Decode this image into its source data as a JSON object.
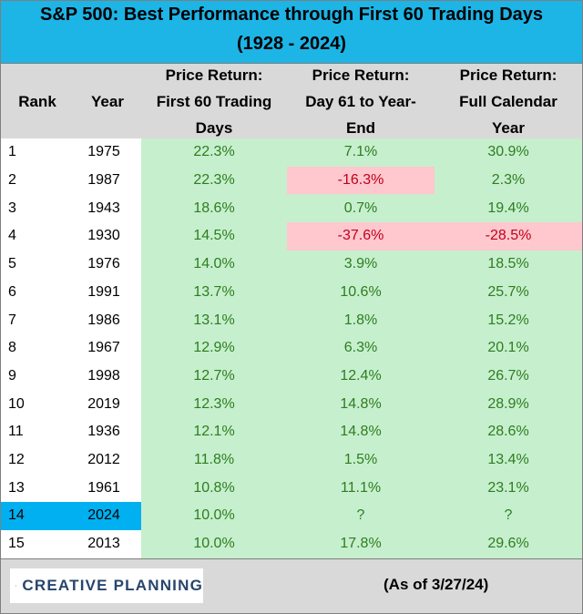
{
  "title": {
    "line1": "S&P 500: Best Performance through First 60 Trading Days",
    "line2": "(1928 - 2024)"
  },
  "headers": {
    "rank": "Rank",
    "year": "Year",
    "col1": [
      "Price Return:",
      "First 60 Trading",
      "Days"
    ],
    "col2": [
      "Price Return:",
      "Day 61 to Year-",
      "End"
    ],
    "col3": [
      "Price Return:",
      "Full Calendar",
      "Year"
    ]
  },
  "rows": [
    {
      "rank": "1",
      "year": "1975",
      "first60": "22.3%",
      "rest": "7.1%",
      "full": "30.9%"
    },
    {
      "rank": "2",
      "year": "1987",
      "first60": "22.3%",
      "rest": "-16.3%",
      "full": "2.3%"
    },
    {
      "rank": "3",
      "year": "1943",
      "first60": "18.6%",
      "rest": "0.7%",
      "full": "19.4%"
    },
    {
      "rank": "4",
      "year": "1930",
      "first60": "14.5%",
      "rest": "-37.6%",
      "full": "-28.5%"
    },
    {
      "rank": "5",
      "year": "1976",
      "first60": "14.0%",
      "rest": "3.9%",
      "full": "18.5%"
    },
    {
      "rank": "6",
      "year": "1991",
      "first60": "13.7%",
      "rest": "10.6%",
      "full": "25.7%"
    },
    {
      "rank": "7",
      "year": "1986",
      "first60": "13.1%",
      "rest": "1.8%",
      "full": "15.2%"
    },
    {
      "rank": "8",
      "year": "1967",
      "first60": "12.9%",
      "rest": "6.3%",
      "full": "20.1%"
    },
    {
      "rank": "9",
      "year": "1998",
      "first60": "12.7%",
      "rest": "12.4%",
      "full": "26.7%"
    },
    {
      "rank": "10",
      "year": "2019",
      "first60": "12.3%",
      "rest": "14.8%",
      "full": "28.9%"
    },
    {
      "rank": "11",
      "year": "1936",
      "first60": "12.1%",
      "rest": "14.8%",
      "full": "28.6%"
    },
    {
      "rank": "12",
      "year": "2012",
      "first60": "11.8%",
      "rest": "1.5%",
      "full": "13.4%"
    },
    {
      "rank": "13",
      "year": "1961",
      "first60": "10.8%",
      "rest": "11.1%",
      "full": "23.1%"
    },
    {
      "rank": "14",
      "year": "2024",
      "first60": "10.0%",
      "rest": "?",
      "full": "?"
    },
    {
      "rank": "15",
      "year": "2013",
      "first60": "10.0%",
      "rest": "17.8%",
      "full": "29.6%"
    }
  ],
  "highlight_row_rank": "14",
  "footer": {
    "logo_text": "CREATIVE PLANNING",
    "as_of": "(As of 3/27/24)"
  },
  "colors": {
    "title_bg": "#1db4e6",
    "positive_text": "#2e7d1e",
    "negative_text": "#c0001a",
    "negative_bg": "#ffc7ce",
    "green_bg": "#c6efce",
    "highlight_bg": "#00b0f0",
    "logo_text": "#27456b"
  }
}
